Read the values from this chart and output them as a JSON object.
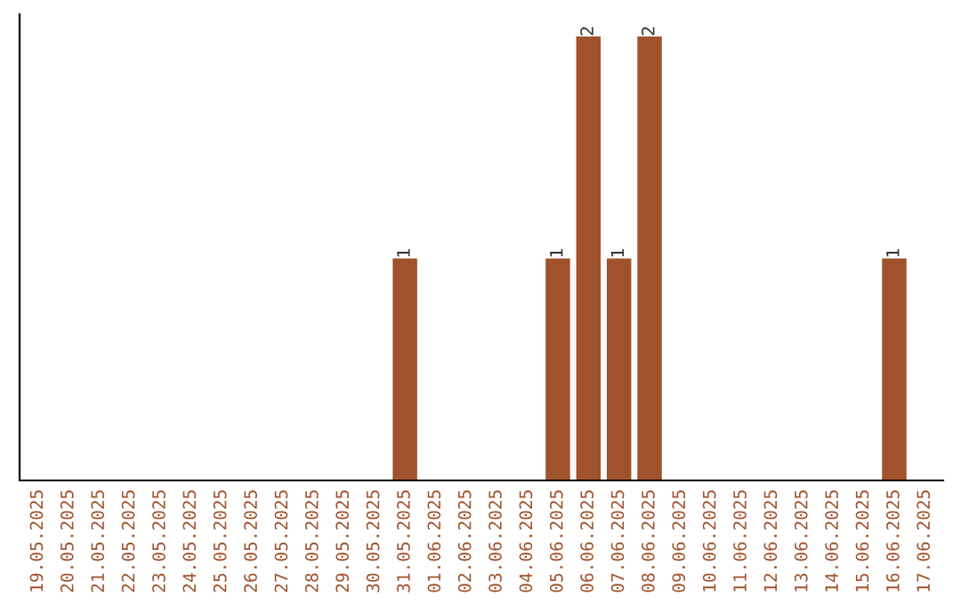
{
  "chart_data": {
    "type": "bar",
    "categories": [
      "19.05.2025",
      "20.05.2025",
      "21.05.2025",
      "22.05.2025",
      "23.05.2025",
      "24.05.2025",
      "25.05.2025",
      "26.05.2025",
      "27.05.2025",
      "28.05.2025",
      "29.05.2025",
      "30.05.2025",
      "31.05.2025",
      "01.06.2025",
      "02.06.2025",
      "03.06.2025",
      "04.06.2025",
      "05.06.2025",
      "06.06.2025",
      "07.06.2025",
      "08.06.2025",
      "09.06.2025",
      "10.06.2025",
      "11.06.2025",
      "12.06.2025",
      "13.06.2025",
      "14.06.2025",
      "15.06.2025",
      "16.06.2025",
      "17.06.2025"
    ],
    "values": [
      null,
      null,
      null,
      null,
      null,
      null,
      null,
      null,
      null,
      null,
      null,
      null,
      1,
      null,
      null,
      null,
      null,
      1,
      2,
      1,
      2,
      null,
      null,
      null,
      null,
      null,
      null,
      null,
      1,
      null
    ],
    "value_labels": [
      null,
      null,
      null,
      null,
      null,
      null,
      null,
      null,
      null,
      null,
      null,
      null,
      "1",
      null,
      null,
      null,
      null,
      "1",
      "2",
      "1",
      "2",
      null,
      null,
      null,
      null,
      null,
      null,
      null,
      "1",
      null
    ],
    "color": "#a0522d",
    "tick_labels": "x",
    "grid": false
  }
}
